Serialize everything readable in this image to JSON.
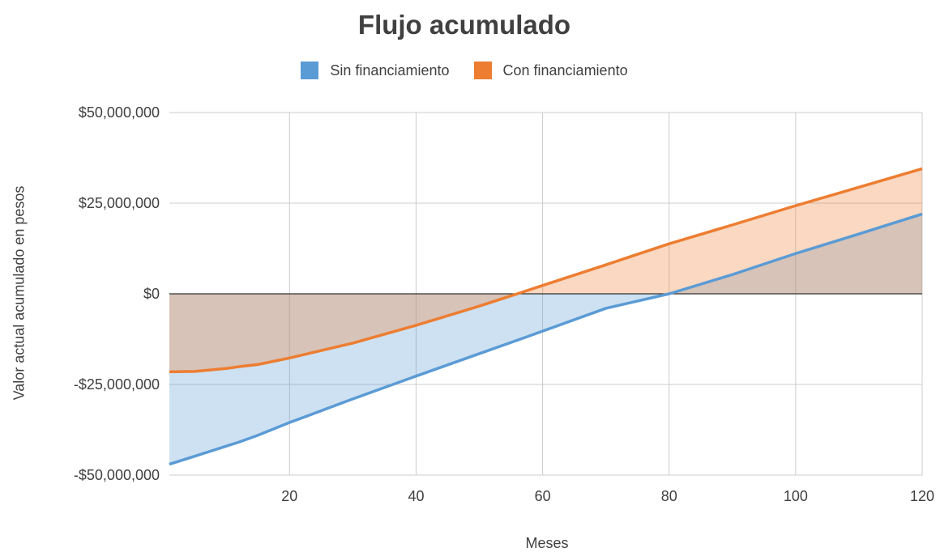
{
  "chart_data": {
    "type": "area",
    "title": "Flujo acumulado",
    "xlabel": "Meses",
    "ylabel": "Valor actual acumulado en pesos",
    "xlim": [
      1,
      120
    ],
    "ylim": [
      -50000000,
      50000000
    ],
    "x_ticks": [
      20,
      40,
      60,
      80,
      100,
      120
    ],
    "y_ticks": [
      -50000000,
      -25000000,
      0,
      25000000,
      50000000
    ],
    "y_tick_labels": [
      "-$50,000,000",
      "-$25,000,000",
      "$0",
      "$25,000,000",
      "$50,000,000"
    ],
    "grid": true,
    "legend_position": "top",
    "x": [
      1,
      5,
      10,
      12,
      15,
      20,
      30,
      40,
      50,
      56,
      60,
      70,
      80,
      90,
      100,
      110,
      120
    ],
    "series": [
      {
        "name": "Sin financiamiento",
        "line_color": "#5b9bd5",
        "fill_color": "#cfe0f1",
        "values": [
          -47000000,
          -44800000,
          -42000000,
          -40900000,
          -39000000,
          -35500000,
          -29000000,
          -22700000,
          -16500000,
          -12800000,
          -10300000,
          -4000000,
          0,
          5300000,
          11100000,
          16500000,
          22000000
        ]
      },
      {
        "name": "Con financiamiento",
        "line_color": "#ed7d31",
        "fill_color": "#f8d3bb",
        "values": [
          -21500000,
          -21400000,
          -20600000,
          -20100000,
          -19500000,
          -17700000,
          -13600000,
          -8700000,
          -3400000,
          0,
          2300000,
          8000000,
          13800000,
          19000000,
          24300000,
          29400000,
          34500000
        ]
      }
    ],
    "overlap_fill_color": "#d7bfb4"
  }
}
